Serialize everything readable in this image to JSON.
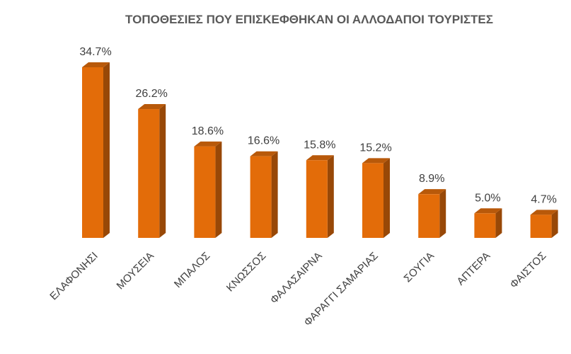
{
  "chart_data": {
    "type": "bar",
    "title": "ΤΟΠΟΘΕΣΙΕΣ ΠΟΥ ΕΠΙΣΚΕΦΘΗΚΑΝ ΟΙ ΑΛΛΟΔΑΠΟΙ ΤΟΥΡΙΣΤΕΣ",
    "categories": [
      "ΕΛΑΦΟΝΗΣΙ",
      "ΜΟΥΣΕΙΑ",
      "ΜΠΑΛΟΣ",
      "ΚΝΩΣΣΟΣ",
      "ΦΑΛΑΣΑΙΡΝΑ",
      "ΦΑΡΑΓΓΙ ΣΑΜΑΡΙΑΣ",
      "ΣΟΥΓΙΑ",
      "ΑΠΤΕΡΑ",
      "ΦΑΙΣΤΟΣ"
    ],
    "values": [
      34.7,
      26.2,
      18.6,
      16.6,
      15.8,
      15.2,
      8.9,
      5.0,
      4.7
    ],
    "data_labels": [
      "34.7%",
      "26.2%",
      "18.6%",
      "16.6%",
      "15.8%",
      "15.2%",
      "8.9%",
      "5.0%",
      "4.7%"
    ],
    "unit": "%",
    "ylim": [
      0,
      34.7
    ],
    "grid": false,
    "legend": "none",
    "bar_style": "3d",
    "colors": {
      "bar_front": "#e36c09",
      "bar_side": "#984807",
      "bar_top": "#b8590a"
    }
  }
}
